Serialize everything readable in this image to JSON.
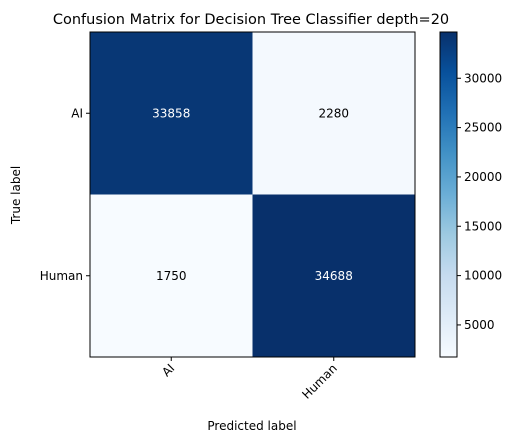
{
  "chart_data": {
    "type": "heatmap",
    "title": "Confusion Matrix for Decision Tree Classifier depth=20",
    "xlabel": "Predicted label",
    "ylabel": "True label",
    "x_categories": [
      "AI",
      "Human"
    ],
    "y_categories": [
      "AI",
      "Human"
    ],
    "matrix": [
      [
        33858,
        2280
      ],
      [
        1750,
        34688
      ]
    ],
    "colormap": "Blues",
    "colorbar": {
      "range": [
        1750,
        34688
      ],
      "ticks": [
        5000,
        10000,
        15000,
        20000,
        25000,
        30000
      ]
    },
    "x_tick_rotation_deg": 45,
    "grid": false
  }
}
